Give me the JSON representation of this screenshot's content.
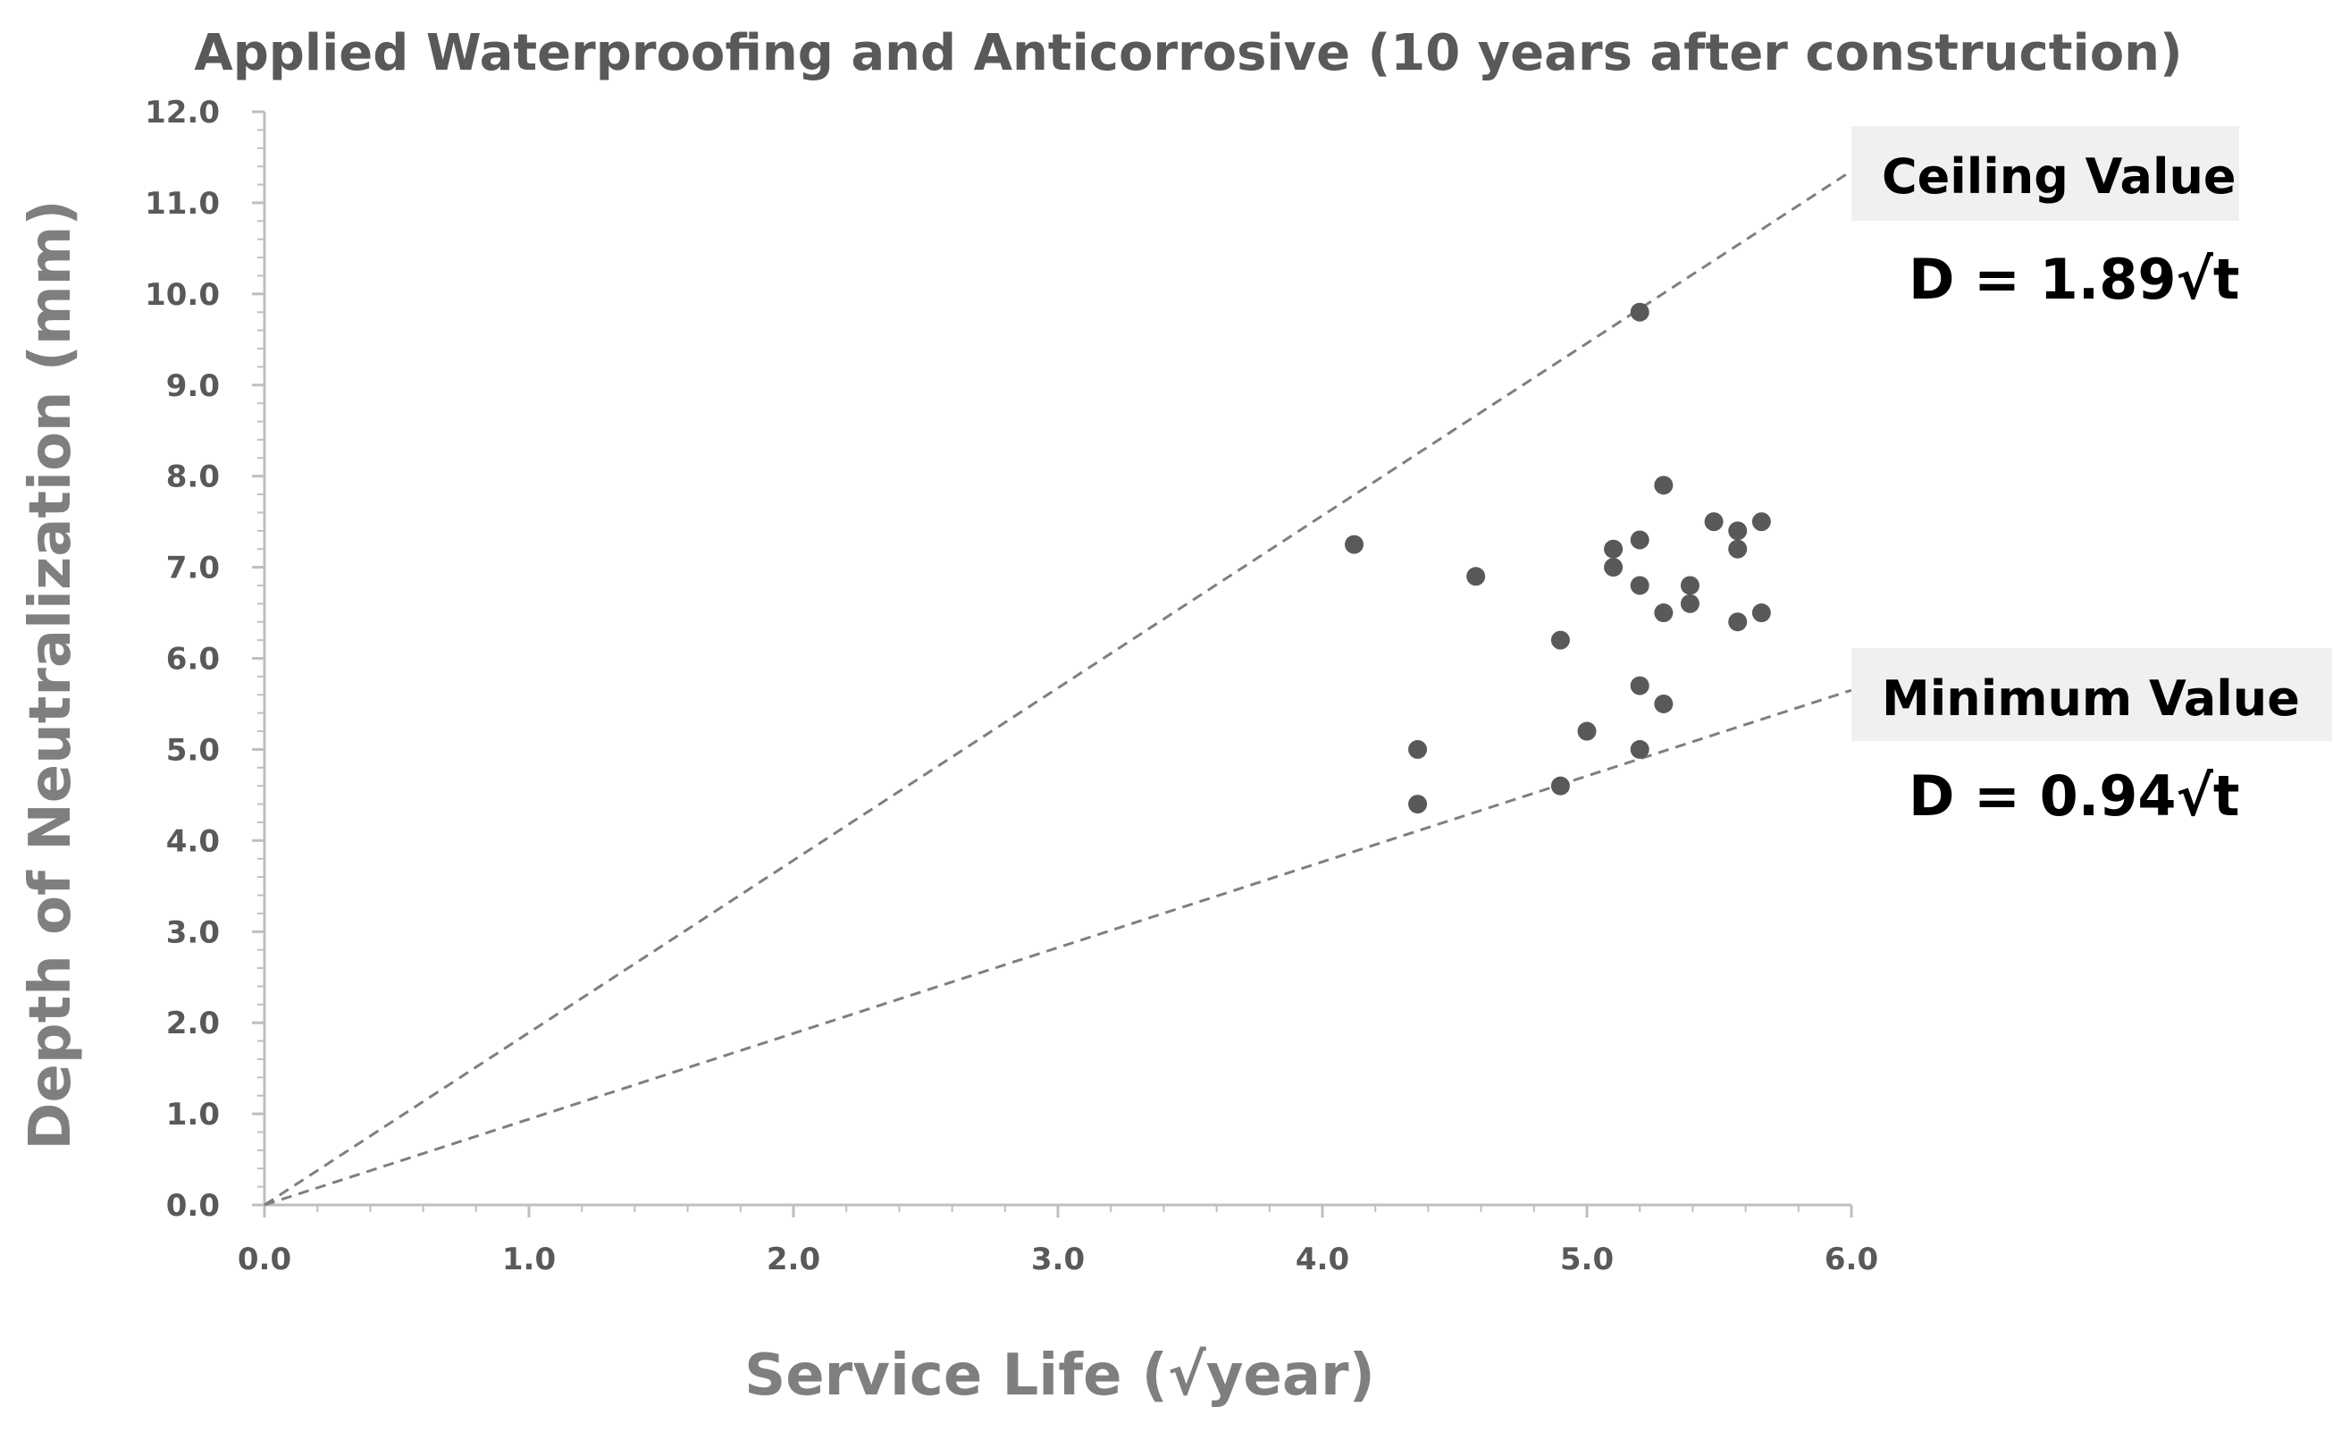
{
  "chart_data": {
    "type": "scatter",
    "title": "Applied Waterproofing and Anticorrosive (10 years after construction)",
    "xlabel": "Service Life (√year)",
    "ylabel": "Depth of Neutralization (mm)",
    "xlim": [
      0,
      6
    ],
    "ylim": [
      0,
      12
    ],
    "x_ticks": [
      "0.0",
      "1.0",
      "2.0",
      "3.0",
      "4.0",
      "5.0",
      "6.0"
    ],
    "y_ticks": [
      "0.0",
      "1.0",
      "2.0",
      "3.0",
      "4.0",
      "5.0",
      "6.0",
      "7.0",
      "8.0",
      "9.0",
      "10.0",
      "11.0",
      "12.0"
    ],
    "grid": false,
    "colors": {
      "points": "#595959",
      "reference_lines": "#7f7f7f",
      "axis": "#bfbfbf"
    },
    "points": [
      {
        "x": 4.12,
        "y": 7.25
      },
      {
        "x": 4.36,
        "y": 5.0
      },
      {
        "x": 4.36,
        "y": 4.4
      },
      {
        "x": 4.58,
        "y": 6.9
      },
      {
        "x": 4.9,
        "y": 6.2
      },
      {
        "x": 4.9,
        "y": 4.6
      },
      {
        "x": 5.0,
        "y": 5.2
      },
      {
        "x": 5.1,
        "y": 7.2
      },
      {
        "x": 5.1,
        "y": 7.0
      },
      {
        "x": 5.2,
        "y": 9.8
      },
      {
        "x": 5.2,
        "y": 7.3
      },
      {
        "x": 5.2,
        "y": 6.8
      },
      {
        "x": 5.2,
        "y": 5.7
      },
      {
        "x": 5.2,
        "y": 5.0
      },
      {
        "x": 5.29,
        "y": 7.9
      },
      {
        "x": 5.29,
        "y": 6.5
      },
      {
        "x": 5.29,
        "y": 5.5
      },
      {
        "x": 5.39,
        "y": 6.8
      },
      {
        "x": 5.39,
        "y": 6.6
      },
      {
        "x": 5.48,
        "y": 7.5
      },
      {
        "x": 5.57,
        "y": 7.4
      },
      {
        "x": 5.57,
        "y": 7.2
      },
      {
        "x": 5.57,
        "y": 6.4
      },
      {
        "x": 5.66,
        "y": 7.5
      },
      {
        "x": 5.66,
        "y": 6.5
      }
    ],
    "reference_lines": [
      {
        "name": "Ceiling Value",
        "equation": "D = 1.89√t",
        "x_range": [
          0,
          6
        ],
        "y_at_end": 11.35
      },
      {
        "name": "Minimum Value",
        "equation": "D = 0.94√t",
        "x_range": [
          0,
          6
        ],
        "y_at_end": 5.65
      }
    ]
  }
}
